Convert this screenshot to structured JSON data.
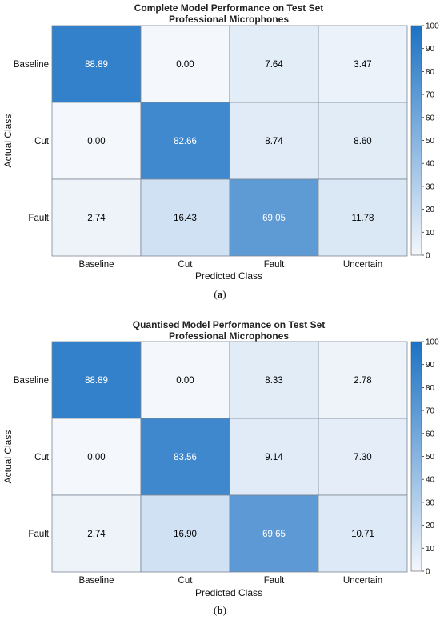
{
  "chart_data": [
    {
      "type": "heatmap",
      "title": "Complete Model Performance on Test Set",
      "subtitle": "Professional Microphones",
      "xlabel": "Predicted Class",
      "ylabel": "Actual Class",
      "x_categories": [
        "Baseline",
        "Cut",
        "Fault",
        "Uncertain"
      ],
      "y_categories": [
        "Baseline",
        "Cut",
        "Fault"
      ],
      "values": [
        [
          88.89,
          0.0,
          7.64,
          3.47
        ],
        [
          0.0,
          82.66,
          8.74,
          8.6
        ],
        [
          2.74,
          16.43,
          69.05,
          11.78
        ]
      ],
      "value_labels": [
        [
          "88.89",
          "0.00",
          "7.64",
          "3.47"
        ],
        [
          "0.00",
          "82.66",
          "8.74",
          "8.60"
        ],
        [
          "2.74",
          "16.43",
          "69.05",
          "11.78"
        ]
      ],
      "colorbar": {
        "range": [
          0,
          100
        ],
        "ticks": [
          "0",
          "10",
          "20",
          "30",
          "40",
          "50",
          "60",
          "70",
          "80",
          "90",
          "100"
        ]
      },
      "caption_letter": "a"
    },
    {
      "type": "heatmap",
      "title": "Quantised Model Performance on Test Set",
      "subtitle": "Professional Microphones",
      "xlabel": "Predicted Class",
      "ylabel": "Actual Class",
      "x_categories": [
        "Baseline",
        "Cut",
        "Fault",
        "Uncertain"
      ],
      "y_categories": [
        "Baseline",
        "Cut",
        "Fault"
      ],
      "values": [
        [
          88.89,
          0.0,
          8.33,
          2.78
        ],
        [
          0.0,
          83.56,
          9.14,
          7.3
        ],
        [
          2.74,
          16.9,
          69.65,
          10.71
        ]
      ],
      "value_labels": [
        [
          "88.89",
          "0.00",
          "8.33",
          "2.78"
        ],
        [
          "0.00",
          "83.56",
          "9.14",
          "7.30"
        ],
        [
          "2.74",
          "16.90",
          "69.65",
          "10.71"
        ]
      ],
      "colorbar": {
        "range": [
          0,
          100
        ],
        "ticks": [
          "0",
          "10",
          "20",
          "30",
          "40",
          "50",
          "60",
          "70",
          "80",
          "90",
          "100"
        ]
      },
      "caption_letter": "b"
    }
  ],
  "colors": {
    "low": "#f4f7fc",
    "high": "#1b72c4",
    "grid": "#7a8694",
    "dark_text": "#000000",
    "light_text": "#ffffff"
  }
}
